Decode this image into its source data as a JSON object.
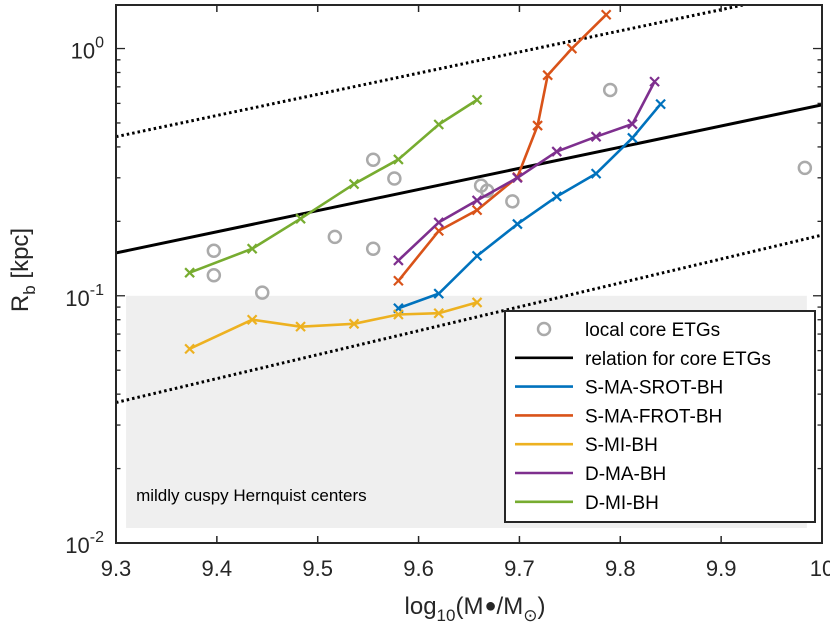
{
  "chart_data": {
    "type": "line",
    "xlabel": "log",
    "xlabel_sub": "10",
    "xlabel_paren": "(M",
    "xlabel_mid": "/M",
    "xlabel_end": ")",
    "ylabel": "R",
    "ylabel_sub": "b",
    "ylabel_unit": " [kpc]",
    "xlim": [
      9.3,
      10.0
    ],
    "ylim": [
      0.01,
      1.5
    ],
    "yscale": "log",
    "x_ticks": [
      "9.3",
      "9.4",
      "9.5",
      "9.6",
      "9.7",
      "9.8",
      "9.9",
      "10"
    ],
    "x_tick_values": [
      9.3,
      9.4,
      9.5,
      9.6,
      9.7,
      9.8,
      9.9,
      10.0
    ],
    "y_ticks": [
      {
        "value": 0.01,
        "base": "10",
        "exp": "-2"
      },
      {
        "value": 0.1,
        "base": "10",
        "exp": "-1"
      },
      {
        "value": 1.0,
        "base": "10",
        "exp": "0"
      }
    ],
    "shaded_region": {
      "x": [
        9.31,
        9.985
      ],
      "y": [
        0.0115,
        0.1
      ],
      "label": "mildly cuspy Hernquist centers",
      "color": "#efefef"
    },
    "scatter": {
      "name": "local core ETGs",
      "color": "#aaaaaa",
      "x": [
        9.397,
        9.397,
        9.445,
        9.517,
        9.555,
        9.555,
        9.576,
        9.662,
        9.668,
        9.693,
        9.79,
        9.983
      ],
      "y": [
        0.152,
        0.121,
        0.103,
        0.173,
        0.155,
        0.355,
        0.298,
        0.279,
        0.266,
        0.241,
        0.68,
        0.329
      ]
    },
    "relation": {
      "name": "relation for core ETGs",
      "color": "#000000",
      "x": [
        9.3,
        10.0
      ],
      "y": [
        0.149,
        0.592
      ],
      "scatter_y_low": [
        0.037,
        0.176
      ],
      "scatter_y_high": [
        0.44,
        1.75
      ]
    },
    "series": [
      {
        "name": "S-MA-SROT-BH",
        "color": "#0072bd",
        "x": [
          9.58,
          9.62,
          9.658,
          9.698,
          9.737,
          9.776,
          9.812,
          9.84
        ],
        "y": [
          0.089,
          0.102,
          0.145,
          0.195,
          0.252,
          0.312,
          0.435,
          0.596
        ]
      },
      {
        "name": "S-MA-FROT-BH",
        "color": "#d95319",
        "x": [
          9.58,
          9.62,
          9.658,
          9.698,
          9.718,
          9.728,
          9.752,
          9.786
        ],
        "y": [
          0.115,
          0.183,
          0.222,
          0.302,
          0.488,
          0.78,
          1.0,
          1.37
        ]
      },
      {
        "name": "S-MI-BH",
        "color": "#edb120",
        "x": [
          9.373,
          9.435,
          9.483,
          9.536,
          9.58,
          9.62,
          9.658
        ],
        "y": [
          0.061,
          0.08,
          0.075,
          0.077,
          0.084,
          0.085,
          0.094
        ]
      },
      {
        "name": "D-MA-BH",
        "color": "#7e2f8e",
        "x": [
          9.58,
          9.62,
          9.658,
          9.698,
          9.737,
          9.776,
          9.812,
          9.834
        ],
        "y": [
          0.139,
          0.198,
          0.243,
          0.3,
          0.383,
          0.44,
          0.495,
          0.735
        ]
      },
      {
        "name": "D-MI-BH",
        "color": "#77ac30",
        "x": [
          9.373,
          9.435,
          9.483,
          9.536,
          9.58,
          9.62,
          9.658
        ],
        "y": [
          0.124,
          0.155,
          0.205,
          0.283,
          0.356,
          0.493,
          0.62
        ]
      }
    ],
    "legend_position": "lower-right"
  }
}
